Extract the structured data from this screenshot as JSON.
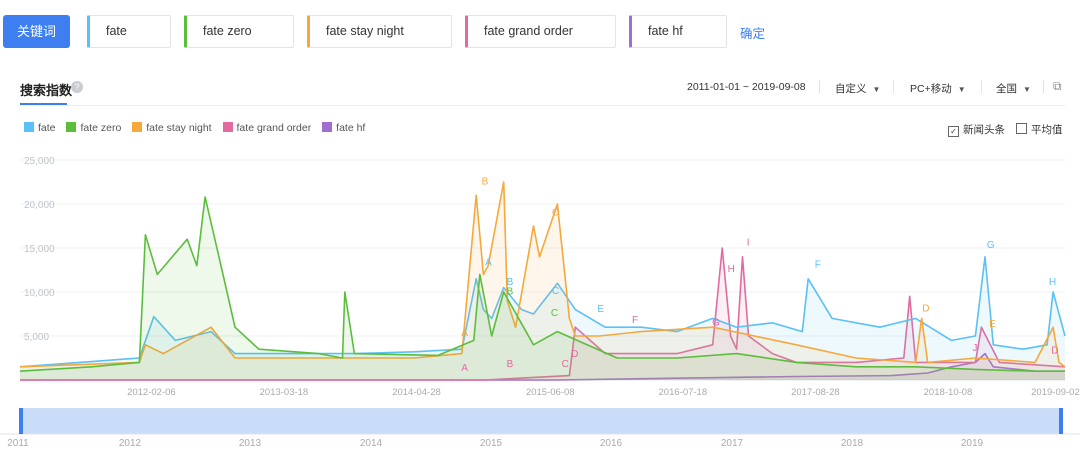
{
  "header": {
    "keyword_button": "关键词",
    "keywords": [
      {
        "label": "fate",
        "color": "#5bc0f5"
      },
      {
        "label": "fate zero",
        "color": "#5cbd3d"
      },
      {
        "label": "fate stay night",
        "color": "#f5a83c"
      },
      {
        "label": "fate grand order",
        "color": "#e36a9f"
      },
      {
        "label": "fate hf",
        "color": "#9f6ed0"
      }
    ],
    "confirm": "确定"
  },
  "panel": {
    "title": "搜索指数",
    "help": "?",
    "date_range": "2011-01-01 ~ 2019-09-08",
    "custom": "自定义",
    "platform": "PC+移动",
    "region": "全国",
    "news_checkbox": "新闻头条",
    "news_checked": "✓",
    "avg_checkbox": "平均值"
  },
  "chart_data": {
    "type": "area",
    "ylim": [
      0,
      25000
    ],
    "yticks": [
      "25,000",
      "20,000",
      "15,000",
      "10,000",
      "5,000"
    ],
    "ytick_values": [
      25000,
      20000,
      15000,
      10000,
      5000
    ],
    "x_range": [
      "2011-01-01",
      "2019-09-08"
    ],
    "xticks": [
      "2012-02-06",
      "2013-03-18",
      "2014-04-28",
      "2015-06-08",
      "2016-07-18",
      "2017-08-28",
      "2018-10-08",
      "2019-09-02"
    ],
    "xtick_values": [
      2012.1,
      2013.21,
      2014.32,
      2015.44,
      2016.55,
      2017.66,
      2018.77,
      2019.67
    ],
    "navigator_years": [
      "2011",
      "2012",
      "2013",
      "2014",
      "2015",
      "2016",
      "2017",
      "2018",
      "2019"
    ],
    "series": [
      {
        "name": "fate",
        "color": "#5bc0f5",
        "x": [
          2011.0,
          2011.5,
          2012.0,
          2012.12,
          2012.3,
          2012.6,
          2012.8,
          2013.3,
          2013.8,
          2014.3,
          2014.7,
          2014.82,
          2014.88,
          2014.95,
          2015.05,
          2015.2,
          2015.3,
          2015.5,
          2015.65,
          2015.9,
          2016.2,
          2016.5,
          2016.8,
          2017.0,
          2017.3,
          2017.55,
          2017.6,
          2017.8,
          2018.2,
          2018.5,
          2018.8,
          2019.0,
          2019.08,
          2019.15,
          2019.4,
          2019.6,
          2019.65,
          2019.75
        ],
        "values": [
          1500,
          2000,
          2500,
          7200,
          4500,
          5500,
          3000,
          3000,
          3000,
          3200,
          3500,
          11500,
          8000,
          7000,
          10500,
          8000,
          7500,
          11000,
          8000,
          6000,
          6000,
          5500,
          7000,
          6000,
          6500,
          5500,
          11500,
          7000,
          6000,
          7000,
          4500,
          5000,
          14000,
          4000,
          3500,
          4000,
          10000,
          5000
        ]
      },
      {
        "name": "fate zero",
        "color": "#5cbd3d",
        "x": [
          2011.0,
          2011.6,
          2012.0,
          2012.05,
          2012.15,
          2012.4,
          2012.48,
          2012.55,
          2012.7,
          2012.8,
          2013.0,
          2013.5,
          2013.7,
          2013.72,
          2013.8,
          2014.5,
          2014.8,
          2014.85,
          2014.95,
          2015.05,
          2015.3,
          2015.5,
          2016.0,
          2016.5,
          2017.0,
          2017.5,
          2018.0,
          2018.5,
          2019.0,
          2019.5,
          2019.75
        ],
        "values": [
          1000,
          1500,
          2000,
          16500,
          12000,
          16000,
          13000,
          20800,
          12000,
          6000,
          3500,
          3000,
          2500,
          10000,
          3000,
          2800,
          4500,
          12000,
          5000,
          10000,
          4000,
          5500,
          2500,
          2500,
          3000,
          2000,
          1500,
          1500,
          1200,
          1000,
          1000
        ]
      },
      {
        "name": "fate stay night",
        "color": "#f5a83c",
        "x": [
          2011.0,
          2012.0,
          2012.05,
          2012.2,
          2012.6,
          2012.8,
          2013.3,
          2014.3,
          2014.7,
          2014.82,
          2014.88,
          2014.92,
          2015.05,
          2015.08,
          2015.15,
          2015.3,
          2015.35,
          2015.5,
          2015.6,
          2015.65,
          2015.85,
          2016.2,
          2016.8,
          2017.5,
          2018.0,
          2018.5,
          2018.55,
          2018.6,
          2019.0,
          2019.5,
          2019.65,
          2019.7,
          2019.75
        ],
        "values": [
          1500,
          2000,
          4000,
          3000,
          6000,
          2500,
          2500,
          2500,
          3000,
          21000,
          12000,
          13000,
          22500,
          9000,
          6000,
          17500,
          14000,
          20000,
          7000,
          5000,
          5000,
          5500,
          6000,
          4000,
          2500,
          2000,
          7000,
          2000,
          2500,
          2000,
          6000,
          2000,
          1500
        ]
      },
      {
        "name": "fate grand order",
        "color": "#e36a9f",
        "x": [
          2011.0,
          2014.9,
          2015.3,
          2015.6,
          2015.65,
          2015.9,
          2016.5,
          2016.8,
          2016.88,
          2016.95,
          2017.0,
          2017.05,
          2017.1,
          2017.3,
          2017.5,
          2018.0,
          2018.4,
          2018.45,
          2018.5,
          2018.9,
          2019.0,
          2019.05,
          2019.2,
          2019.75
        ],
        "values": [
          0,
          0,
          300,
          500,
          6000,
          3000,
          3000,
          4000,
          15000,
          5000,
          3500,
          14000,
          5000,
          3000,
          2000,
          2000,
          2500,
          9500,
          2000,
          2000,
          2000,
          6000,
          2000,
          1500
        ]
      },
      {
        "name": "fate hf",
        "color": "#9f6ed0",
        "x": [
          2011.0,
          2015.5,
          2016.5,
          2017.5,
          2018.3,
          2018.6,
          2018.8,
          2019.0,
          2019.08,
          2019.15,
          2019.5,
          2019.75
        ],
        "values": [
          0,
          0,
          200,
          400,
          500,
          800,
          1500,
          2000,
          3000,
          1500,
          1000,
          1000
        ]
      }
    ],
    "annotations": [
      {
        "label": "A",
        "x": 2014.72,
        "y": 5000,
        "color": "#f5a83c"
      },
      {
        "label": "A",
        "x": 2014.72,
        "y": 1000,
        "color": "#e36a9f"
      },
      {
        "label": "A",
        "x": 2014.92,
        "y": 13000,
        "color": "#5bc0f5"
      },
      {
        "label": "B",
        "x": 2014.89,
        "y": 22200,
        "color": "#f5a83c"
      },
      {
        "label": "B",
        "x": 2015.1,
        "y": 1500,
        "color": "#e36a9f"
      },
      {
        "label": "B",
        "x": 2015.1,
        "y": 10800,
        "color": "#5bc0f5"
      },
      {
        "label": "B",
        "x": 2015.1,
        "y": 9700,
        "color": "#5cbd3d"
      },
      {
        "label": "C",
        "x": 2015.48,
        "y": 18700,
        "color": "#f5a83c"
      },
      {
        "label": "C",
        "x": 2015.48,
        "y": 9800,
        "color": "#5bc0f5"
      },
      {
        "label": "C",
        "x": 2015.47,
        "y": 7300,
        "color": "#5cbd3d"
      },
      {
        "label": "C",
        "x": 2015.56,
        "y": 1500,
        "color": "#e36a9f"
      },
      {
        "label": "D",
        "x": 2015.64,
        "y": 2600,
        "color": "#e36a9f"
      },
      {
        "label": "E",
        "x": 2015.86,
        "y": 7700,
        "color": "#5bc0f5"
      },
      {
        "label": "F",
        "x": 2016.15,
        "y": 6500,
        "color": "#e36a9f"
      },
      {
        "label": "G",
        "x": 2016.82,
        "y": 6200,
        "color": "#e36a9f"
      },
      {
        "label": "H",
        "x": 2016.95,
        "y": 12300,
        "color": "#e36a9f"
      },
      {
        "label": "I",
        "x": 2017.11,
        "y": 15300,
        "color": "#e36a9f"
      },
      {
        "label": "F",
        "x": 2017.68,
        "y": 12800,
        "color": "#5bc0f5"
      },
      {
        "label": "D",
        "x": 2018.58,
        "y": 7800,
        "color": "#f5a83c"
      },
      {
        "label": "J",
        "x": 2019.0,
        "y": 3300,
        "color": "#e36a9f"
      },
      {
        "label": "G",
        "x": 2019.12,
        "y": 15000,
        "color": "#5bc0f5"
      },
      {
        "label": "H",
        "x": 2019.64,
        "y": 10800,
        "color": "#5bc0f5"
      },
      {
        "label": "E",
        "x": 2019.14,
        "y": 6000,
        "color": "#f5a83c"
      },
      {
        "label": "D",
        "x": 2019.66,
        "y": 3000,
        "color": "#e36a9f"
      }
    ]
  }
}
